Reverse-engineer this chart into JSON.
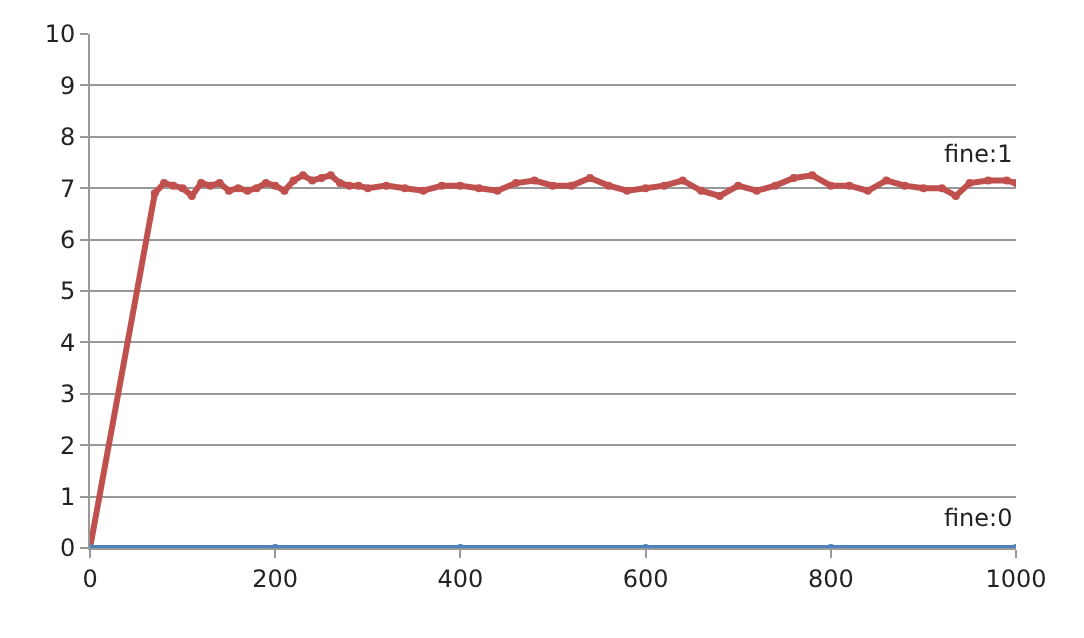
{
  "chart_data": {
    "type": "line",
    "xlim": [
      0,
      1000
    ],
    "ylim": [
      0,
      10
    ],
    "xticks": [
      0,
      200,
      400,
      600,
      800,
      1000
    ],
    "yticks": [
      0,
      1,
      2,
      3,
      4,
      5,
      6,
      7,
      8,
      9,
      10
    ],
    "grid": "y",
    "legend": false,
    "marker": "circle",
    "line_style": "solid",
    "series": [
      {
        "name": "fine:1",
        "color": "#c0504d",
        "x": [
          0,
          70,
          80,
          90,
          100,
          110,
          120,
          130,
          140,
          150,
          160,
          170,
          180,
          190,
          200,
          210,
          220,
          230,
          240,
          250,
          260,
          270,
          280,
          290,
          300,
          320,
          340,
          360,
          380,
          400,
          420,
          440,
          460,
          480,
          500,
          520,
          540,
          560,
          580,
          600,
          620,
          640,
          660,
          680,
          700,
          720,
          740,
          760,
          780,
          800,
          820,
          840,
          860,
          880,
          900,
          920,
          935,
          950,
          970,
          990,
          1000
        ],
        "values": [
          0,
          6.9,
          7.1,
          7.05,
          7.0,
          6.85,
          7.1,
          7.05,
          7.1,
          6.95,
          7.0,
          6.95,
          7.0,
          7.1,
          7.05,
          6.95,
          7.15,
          7.25,
          7.15,
          7.2,
          7.25,
          7.1,
          7.05,
          7.05,
          7.0,
          7.05,
          7.0,
          6.95,
          7.05,
          7.05,
          7.0,
          6.95,
          7.1,
          7.15,
          7.05,
          7.05,
          7.2,
          7.05,
          6.95,
          7.0,
          7.05,
          7.15,
          6.95,
          6.85,
          7.05,
          6.95,
          7.05,
          7.2,
          7.25,
          7.05,
          7.05,
          6.95,
          7.15,
          7.05,
          7.0,
          7.0,
          6.85,
          7.1,
          7.15,
          7.15,
          7.1
        ]
      },
      {
        "name": "fine:0",
        "color": "#4f81bd",
        "x": [
          0,
          200,
          400,
          600,
          800,
          1000
        ],
        "values": [
          0,
          0,
          0,
          0,
          0,
          0
        ]
      }
    ]
  }
}
